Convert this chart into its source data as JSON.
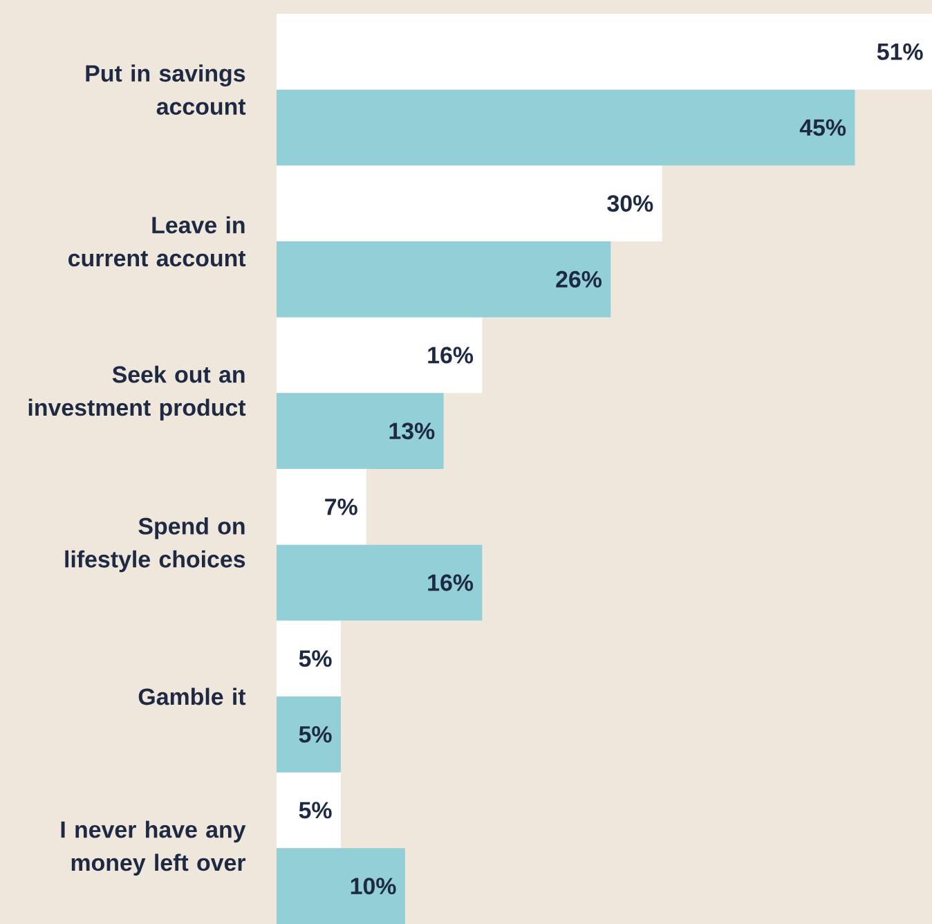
{
  "chart_data": {
    "type": "bar",
    "orientation": "horizontal",
    "categories": [
      "Put in savings account",
      "Leave in current account",
      "Seek out an investment product",
      "Spend on lifestyle choices",
      "Gamble it",
      "I never have any money left over"
    ],
    "series": [
      {
        "color": "#ffffff",
        "values": [
          51,
          30,
          16,
          7,
          5,
          5
        ],
        "value_labels": [
          "51%",
          "30%",
          "16%",
          "7%",
          "5%",
          "5%"
        ]
      },
      {
        "color": "#93cfd6",
        "values": [
          45,
          26,
          13,
          16,
          5,
          10
        ],
        "value_labels": [
          "45%",
          "26%",
          "13%",
          "16%",
          "5%",
          "10%"
        ]
      }
    ]
  }
}
